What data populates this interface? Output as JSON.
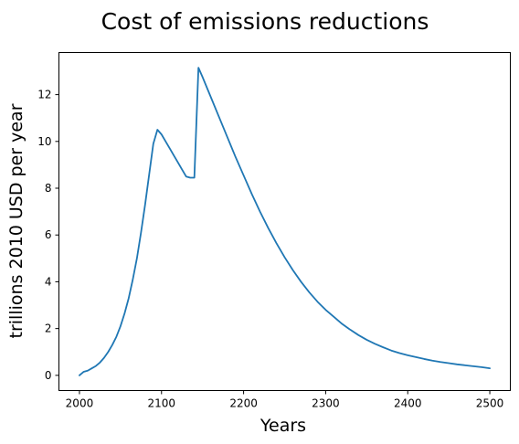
{
  "chart_data": {
    "type": "line",
    "title": "Cost of emissions reductions",
    "xlabel": "Years",
    "ylabel": "trillions 2010 USD per year",
    "xlim": [
      1975,
      2525
    ],
    "ylim": [
      -0.65,
      13.8
    ],
    "x_ticks": [
      2000,
      2100,
      2200,
      2300,
      2400,
      2500
    ],
    "y_ticks": [
      0,
      2,
      4,
      6,
      8,
      10,
      12
    ],
    "grid": false,
    "legend": "none",
    "colors": {
      "line": "#1f77b4"
    },
    "series": [
      {
        "x": [
          2000,
          2005,
          2010,
          2015,
          2020,
          2025,
          2030,
          2035,
          2040,
          2045,
          2050,
          2055,
          2060,
          2065,
          2070,
          2075,
          2080,
          2085,
          2090,
          2095,
          2100,
          2105,
          2110,
          2115,
          2120,
          2125,
          2130,
          2135,
          2140,
          2145,
          2150,
          2160,
          2170,
          2180,
          2190,
          2200,
          2210,
          2220,
          2230,
          2240,
          2250,
          2260,
          2270,
          2280,
          2290,
          2300,
          2310,
          2320,
          2330,
          2340,
          2350,
          2360,
          2370,
          2380,
          2390,
          2400,
          2410,
          2420,
          2430,
          2440,
          2450,
          2460,
          2470,
          2480,
          2490,
          2500
        ],
        "y": [
          0.0,
          0.15,
          0.2,
          0.3,
          0.4,
          0.55,
          0.75,
          1.0,
          1.3,
          1.65,
          2.1,
          2.65,
          3.3,
          4.1,
          5.0,
          6.1,
          7.3,
          8.6,
          9.9,
          10.5,
          10.3,
          10.0,
          9.7,
          9.4,
          9.1,
          8.8,
          8.5,
          8.45,
          8.45,
          13.15,
          12.75,
          11.9,
          11.05,
          10.2,
          9.35,
          8.55,
          7.75,
          7.0,
          6.3,
          5.65,
          5.05,
          4.5,
          4.0,
          3.55,
          3.15,
          2.8,
          2.5,
          2.2,
          1.95,
          1.72,
          1.52,
          1.35,
          1.2,
          1.06,
          0.95,
          0.86,
          0.78,
          0.7,
          0.63,
          0.57,
          0.52,
          0.47,
          0.43,
          0.39,
          0.35,
          0.3
        ]
      }
    ]
  }
}
